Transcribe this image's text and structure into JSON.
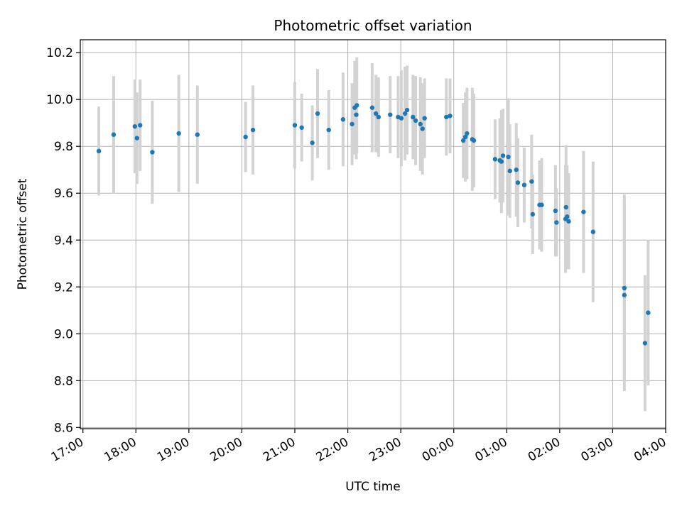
{
  "chart_data": {
    "type": "scatter",
    "title": "Photometric offset variation",
    "xlabel": "UTC time",
    "ylabel": "Photometric offset",
    "x_unit": "UTC time (hours, hours ≥ 24 are after midnight)",
    "xlim": [
      16.95,
      28.0
    ],
    "ylim": [
      8.595,
      10.255
    ],
    "x_ticks": [
      17,
      18,
      19,
      20,
      21,
      22,
      23,
      24,
      25,
      26,
      27,
      28
    ],
    "x_tick_labels": [
      "17:00",
      "18:00",
      "19:00",
      "20:00",
      "21:00",
      "22:00",
      "23:00",
      "00:00",
      "01:00",
      "02:00",
      "03:00",
      "04:00"
    ],
    "y_ticks": [
      8.6,
      8.8,
      9.0,
      9.2,
      9.4,
      9.6,
      9.8,
      10.0,
      10.2
    ],
    "y_tick_labels": [
      "8.6",
      "8.8",
      "9.0",
      "9.2",
      "9.4",
      "9.6",
      "9.8",
      "10.0",
      "10.2"
    ],
    "grid": true,
    "colors": {
      "point": "#1f77b4",
      "errorbar": "#d3d3d3",
      "grid": "#b0b0b0"
    },
    "series": [
      {
        "x": [
          17.3,
          17.58,
          17.98,
          18.02,
          18.08,
          18.31,
          18.81,
          19.16,
          20.07,
          20.21,
          21.0,
          21.13,
          21.33,
          21.43,
          21.64,
          21.91,
          22.08,
          22.13,
          22.16,
          22.17,
          22.46,
          22.53,
          22.58,
          22.8,
          22.95,
          23.01,
          23.08,
          23.12,
          23.23,
          23.28,
          23.37,
          23.41,
          23.45,
          23.86,
          23.93,
          24.18,
          24.22,
          24.25,
          24.35,
          24.38,
          24.78,
          24.87,
          24.9,
          24.93,
          25.03,
          25.06,
          25.18,
          25.21,
          25.33,
          25.47,
          25.49,
          25.62,
          25.66,
          25.92,
          25.94,
          26.11,
          26.12,
          26.14,
          26.17,
          26.45,
          26.63,
          27.22,
          27.22,
          27.61,
          27.67
        ],
        "y": [
          9.78,
          9.85,
          9.885,
          9.835,
          9.89,
          9.775,
          9.855,
          9.85,
          9.84,
          9.87,
          9.89,
          9.88,
          9.815,
          9.94,
          9.87,
          9.915,
          9.895,
          9.965,
          9.935,
          9.975,
          9.965,
          9.94,
          9.925,
          9.935,
          9.925,
          9.92,
          9.94,
          9.955,
          9.925,
          9.91,
          9.895,
          9.875,
          9.92,
          9.925,
          9.93,
          9.825,
          9.84,
          9.855,
          9.83,
          9.825,
          9.745,
          9.74,
          9.735,
          9.76,
          9.755,
          9.695,
          9.7,
          9.645,
          9.635,
          9.65,
          9.51,
          9.55,
          9.55,
          9.525,
          9.475,
          9.49,
          9.54,
          9.5,
          9.48,
          9.52,
          9.435,
          9.195,
          9.165,
          8.96,
          9.09
        ],
        "err": [
          0.19,
          0.25,
          0.2,
          0.195,
          0.195,
          0.22,
          0.25,
          0.21,
          0.15,
          0.19,
          0.185,
          0.145,
          0.16,
          0.19,
          0.17,
          0.2,
          0.175,
          0.2,
          0.19,
          0.205,
          0.19,
          0.165,
          0.17,
          0.165,
          0.175,
          0.205,
          0.2,
          0.19,
          0.18,
          0.19,
          0.2,
          0.195,
          0.17,
          0.165,
          0.16,
          0.16,
          0.19,
          0.195,
          0.22,
          0.2,
          0.17,
          0.18,
          0.22,
          0.2,
          0.25,
          0.2,
          0.2,
          0.19,
          0.16,
          0.2,
          0.17,
          0.19,
          0.2,
          0.195,
          0.145,
          0.23,
          0.265,
          0.22,
          0.205,
          0.26,
          0.3,
          0.4,
          0.41,
          0.29,
          0.31
        ]
      }
    ]
  }
}
